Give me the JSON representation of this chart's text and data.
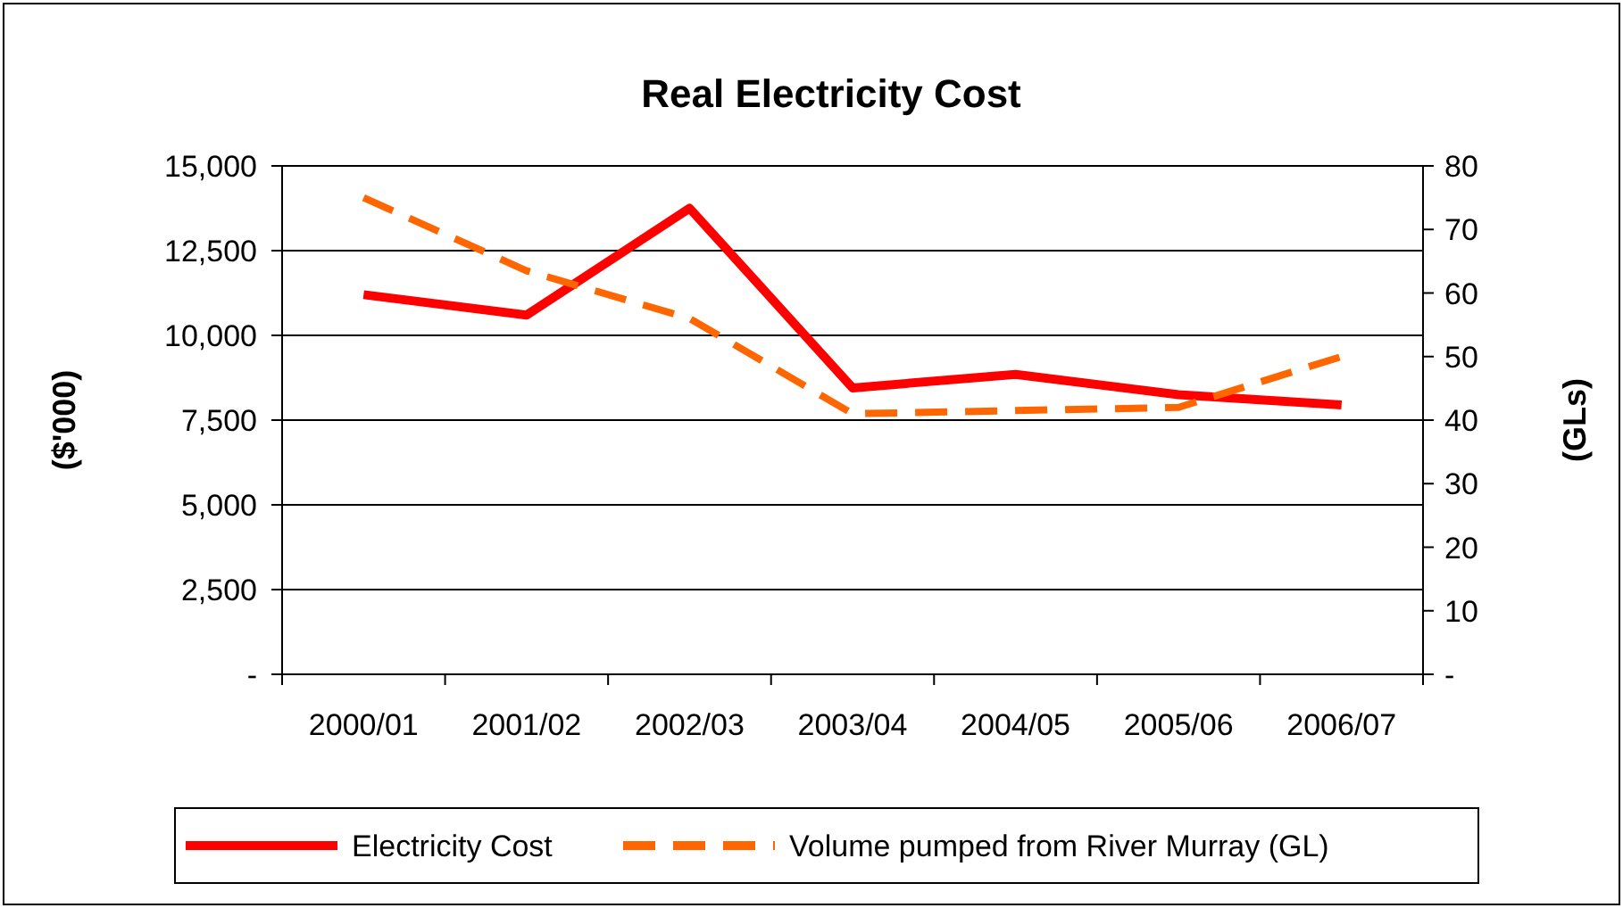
{
  "chart_data": {
    "type": "line",
    "title": "Real Electricity Cost",
    "ylabel": "($'000)",
    "y2label": "(GLs)",
    "categories": [
      "2000/01",
      "2001/02",
      "2002/03",
      "2003/04",
      "2004/05",
      "2005/06",
      "2006/07"
    ],
    "series": [
      {
        "name": "Electricity Cost",
        "color": "#ff0000",
        "values": [
          11200,
          10600,
          13750,
          8450,
          8850,
          8250,
          7950
        ],
        "line_style": "solid"
      },
      {
        "name": "Volume pumped from River Murray (GL)",
        "color": "#ff6600",
        "values": [
          75,
          63.5,
          56,
          41,
          41.5,
          42,
          50
        ],
        "axis": "y2",
        "line_style": "dashed"
      }
    ],
    "ylim": [
      0,
      15000
    ],
    "yticks": [
      {
        "value": 0,
        "label": "-"
      },
      {
        "value": 2500,
        "label": "2,500"
      },
      {
        "value": 5000,
        "label": "5,000"
      },
      {
        "value": 7500,
        "label": "7,500"
      },
      {
        "value": 10000,
        "label": "10,000"
      },
      {
        "value": 12500,
        "label": "12,500"
      },
      {
        "value": 15000,
        "label": "15,000"
      }
    ],
    "y2lim": [
      0,
      80
    ],
    "y2ticks": [
      {
        "value": 0,
        "label": "-"
      },
      10,
      20,
      30,
      40,
      50,
      60,
      70,
      80
    ],
    "grid": "y",
    "legend": "bottom",
    "marker": "none"
  }
}
